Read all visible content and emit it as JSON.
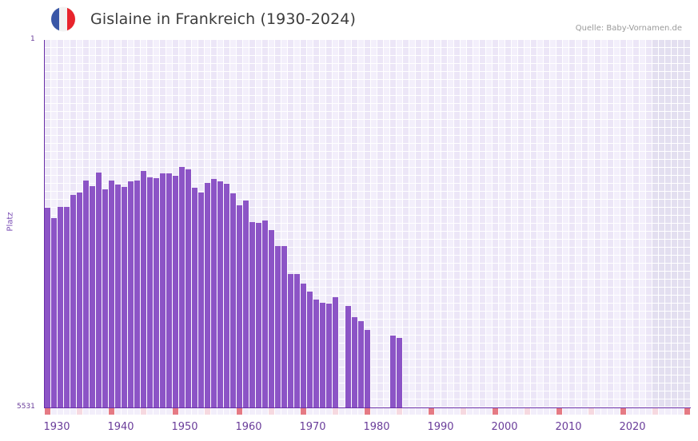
{
  "header": {
    "title": "Gislaine in Frankreich (1930-2024)",
    "source": "Quelle: Baby-Vornamen.de",
    "flag": {
      "name": "france-flag",
      "colors": [
        "#3a57a7",
        "#f2f2f2",
        "#e8242c"
      ]
    }
  },
  "colors": {
    "bar": "#8c54c6",
    "axis": "#6a2ea8",
    "grid_light": "#f3effb",
    "grid_dark": "#ece6f7",
    "future_grid": "#e3dff0",
    "tick_decade": "#e57a84",
    "tick_half": "#f6d9e0",
    "tick_normal": "#f2eefa",
    "label": "#6a3d9a"
  },
  "axes": {
    "y_title": "Platz",
    "y_top_label": "1",
    "y_bottom_label": "5531",
    "x_labels": [
      "1930",
      "1940",
      "1950",
      "1960",
      "1970",
      "1980",
      "1990",
      "2000",
      "2010",
      "2020"
    ]
  },
  "chart_data": {
    "type": "bar",
    "title": "Gislaine in Frankreich (1930-2024)",
    "subtitle": "Quelle: Baby-Vornamen.de",
    "xlabel": "",
    "ylabel": "Platz",
    "ylim": [
      5531,
      1
    ],
    "y_inverted": true,
    "grid": true,
    "legend": null,
    "x_ticks": [
      1930,
      1940,
      1950,
      1960,
      1970,
      1980,
      1990,
      2000,
      2010,
      2020
    ],
    "categories": [
      1930,
      1931,
      1932,
      1933,
      1934,
      1935,
      1936,
      1937,
      1938,
      1939,
      1940,
      1941,
      1942,
      1943,
      1944,
      1945,
      1946,
      1947,
      1948,
      1949,
      1950,
      1951,
      1952,
      1953,
      1954,
      1955,
      1956,
      1957,
      1958,
      1959,
      1960,
      1961,
      1962,
      1963,
      1964,
      1965,
      1966,
      1967,
      1968,
      1969,
      1970,
      1971,
      1972,
      1973,
      1974,
      1975,
      1976,
      1977,
      1978,
      1979,
      1980,
      1981,
      1982,
      1983,
      1984,
      1985
    ],
    "values": [
      2525,
      2681,
      2513,
      2513,
      2332,
      2296,
      2116,
      2200,
      1996,
      2248,
      2116,
      2176,
      2212,
      2128,
      2116,
      1972,
      2068,
      2080,
      2008,
      2008,
      2044,
      1912,
      1948,
      2224,
      2296,
      2152,
      2092,
      2128,
      2164,
      2308,
      2489,
      2417,
      2741,
      2753,
      2717,
      2861,
      3101,
      3101,
      3522,
      3522,
      3666,
      3786,
      3906,
      3954,
      3966,
      3870,
      null,
      4002,
      4171,
      4231,
      4363,
      null,
      null,
      null,
      4447,
      4483
    ]
  }
}
